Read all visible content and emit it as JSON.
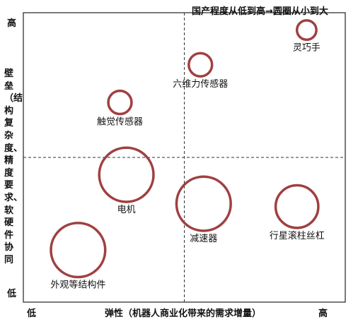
{
  "chart_data": {
    "type": "scatter",
    "title": "国产程度从低到高→圆圈从小到大",
    "xlabel": "弹性（机器人商业化带来的需求增量）",
    "ylabel": "壁垒（结构复杂度、精度要求、软硬件协同",
    "x_low": "低",
    "x_high": "高",
    "y_low": "低",
    "y_high": "高",
    "xlim": [
      0,
      10
    ],
    "ylim": [
      0,
      10
    ],
    "circle_color": "#a04040",
    "points": [
      {
        "label": "灵巧手",
        "x": 8.8,
        "y": 9.4,
        "r": 1.0
      },
      {
        "label": "六维力传感器",
        "x": 5.5,
        "y": 8.2,
        "r": 1.2
      },
      {
        "label": "触觉传感器",
        "x": 3.0,
        "y": 6.9,
        "r": 1.2
      },
      {
        "label": "电机",
        "x": 3.2,
        "y": 4.4,
        "r": 2.8
      },
      {
        "label": "减速器",
        "x": 5.6,
        "y": 3.4,
        "r": 2.8
      },
      {
        "label": "行星滚柱丝杠",
        "x": 8.5,
        "y": 3.3,
        "r": 2.2
      },
      {
        "label": "外观等结构件",
        "x": 1.7,
        "y": 1.8,
        "r": 2.8
      }
    ]
  }
}
